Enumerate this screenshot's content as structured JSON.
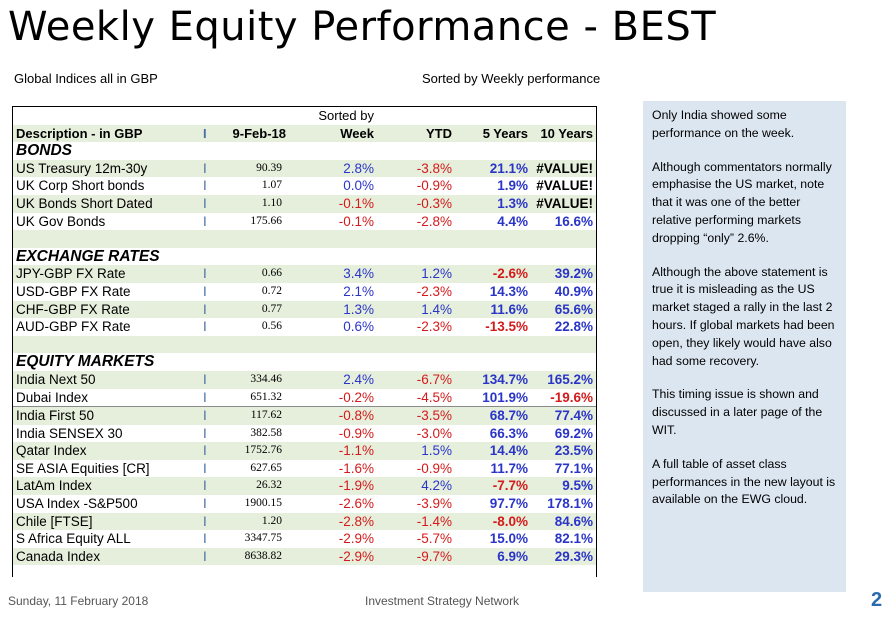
{
  "title": "Weekly Equity Performance - BEST",
  "subtitle_left": "Global Indices all in GBP",
  "subtitle_right": "Sorted by Weekly performance",
  "table": {
    "sorted_by_label": "Sorted by",
    "headers": {
      "description": "Description - in GBP",
      "bar": "I",
      "date": "9-Feb-18",
      "week": "Week",
      "ytd": "YTD",
      "five_years": "5 Years",
      "ten_years": "10 Years"
    },
    "sections": [
      {
        "name": "BONDS",
        "rows": [
          {
            "desc": "US Treasury 12m-30y",
            "bar": "I",
            "price": "90.39",
            "week": "2.8%",
            "ytd": "-3.8%",
            "y5": "21.1%",
            "y10": "#VALUE!"
          },
          {
            "desc": "UK Corp Short bonds",
            "bar": "I",
            "price": "1.07",
            "week": "0.0%",
            "ytd": "-0.9%",
            "y5": "1.9%",
            "y10": "#VALUE!"
          },
          {
            "desc": "UK Bonds Short Dated",
            "bar": "I",
            "price": "1.10",
            "week": "-0.1%",
            "ytd": "-0.3%",
            "y5": "1.3%",
            "y10": "#VALUE!"
          },
          {
            "desc": "UK Gov Bonds",
            "bar": "I",
            "price": "175.66",
            "week": "-0.1%",
            "ytd": "-2.8%",
            "y5": "4.4%",
            "y10": "16.6%"
          }
        ]
      },
      {
        "name": "EXCHANGE RATES",
        "rows": [
          {
            "desc": "JPY-GBP FX Rate",
            "bar": "I",
            "price": "0.66",
            "week": "3.4%",
            "ytd": "1.2%",
            "y5": "-2.6%",
            "y10": "39.2%"
          },
          {
            "desc": "USD-GBP FX Rate",
            "bar": "I",
            "price": "0.72",
            "week": "2.1%",
            "ytd": "-2.3%",
            "y5": "14.3%",
            "y10": "40.9%"
          },
          {
            "desc": "CHF-GBP FX Rate",
            "bar": "I",
            "price": "0.77",
            "week": "1.3%",
            "ytd": "1.4%",
            "y5": "11.6%",
            "y10": "65.6%"
          },
          {
            "desc": "AUD-GBP FX Rate",
            "bar": "I",
            "price": "0.56",
            "week": "0.6%",
            "ytd": "-2.3%",
            "y5": "-13.5%",
            "y10": "22.8%"
          }
        ]
      },
      {
        "name": "EQUITY MARKETS",
        "rows": [
          {
            "desc": "India Next 50",
            "bar": "I",
            "price": "334.46",
            "week": "2.4%",
            "ytd": "-6.7%",
            "y5": "134.7%",
            "y10": "165.2%"
          },
          {
            "desc": "Dubai Index",
            "bar": "I",
            "price": "651.32",
            "week": "-0.2%",
            "ytd": "-4.5%",
            "y5": "101.9%",
            "y10": "-19.6%"
          },
          {
            "desc": "India First 50",
            "bar": "I",
            "price": "117.62",
            "week": "-0.8%",
            "ytd": "-3.5%",
            "y5": "68.7%",
            "y10": "77.4%"
          },
          {
            "desc": "India SENSEX 30",
            "bar": "I",
            "price": "382.58",
            "week": "-0.9%",
            "ytd": "-3.0%",
            "y5": "66.3%",
            "y10": "69.2%"
          },
          {
            "desc": "Qatar Index",
            "bar": "I",
            "price": "1752.76",
            "week": "-1.1%",
            "ytd": "1.5%",
            "y5": "14.4%",
            "y10": "23.5%"
          },
          {
            "desc": "SE ASIA Equities [CR]",
            "bar": "I",
            "price": "627.65",
            "week": "-1.6%",
            "ytd": "-0.9%",
            "y5": "11.7%",
            "y10": "77.1%"
          },
          {
            "desc": "LatAm Index",
            "bar": "I",
            "price": "26.32",
            "week": "-1.9%",
            "ytd": "4.2%",
            "y5": "-7.7%",
            "y10": "9.5%"
          },
          {
            "desc": "USA Index -S&P500",
            "bar": "I",
            "price": "1900.15",
            "week": "-2.6%",
            "ytd": "-3.9%",
            "y5": "97.7%",
            "y10": "178.1%"
          },
          {
            "desc": "Chile [FTSE]",
            "bar": "I",
            "price": "1.20",
            "week": "-2.8%",
            "ytd": "-1.4%",
            "y5": "-8.0%",
            "y10": "84.6%"
          },
          {
            "desc": "S Africa  Equity ALL",
            "bar": "I",
            "price": "3347.75",
            "week": "-2.9%",
            "ytd": "-5.7%",
            "y5": "15.0%",
            "y10": "82.1%"
          },
          {
            "desc": "Canada Index",
            "bar": "I",
            "price": "8638.82",
            "week": "-2.9%",
            "ytd": "-9.7%",
            "y5": "6.9%",
            "y10": "29.3%"
          }
        ]
      }
    ]
  },
  "sidebar": {
    "paragraphs": [
      "Only India showed some performance on the week.",
      "Although commentators normally emphasise the US market, note that it was one of the better relative performing markets dropping “only” 2.6%.",
      "Although the above statement is true it is misleading as the US market staged a rally in the last 2 hours.  If global markets had been open, they likely would have also had some recovery.",
      "This timing issue is shown and discussed in a later page of the WIT.",
      "A full table of asset class performances in the new layout is available on the EWG cloud."
    ]
  },
  "footer": {
    "date": "Sunday, 11 February 2018",
    "organisation": "Investment Strategy Network",
    "page_number": "2"
  },
  "colors": {
    "positive": "#2a35c8",
    "negative": "#d41a1a",
    "row_green": "#e6efdc",
    "sidebar_bg": "#dce6f1",
    "page_number": "#2a6ab0"
  }
}
